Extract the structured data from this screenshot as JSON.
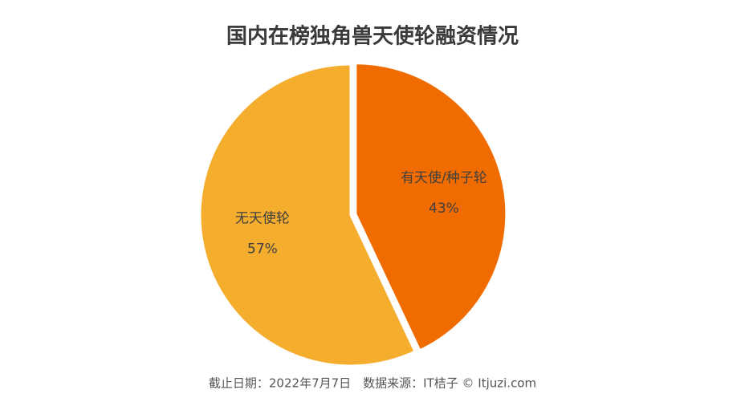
{
  "chart_data": {
    "type": "pie",
    "title": "国内在榜独角兽天使轮融资情况",
    "categories": [
      "有天使/种子轮",
      "无天使轮"
    ],
    "values": [
      43,
      57
    ],
    "value_labels": [
      "43%",
      "57%"
    ],
    "colors": [
      "#f06c00",
      "#f5ad2e"
    ],
    "source": "截止日期：2022年7月7日　数据来源：IT桔子 © Itjuzi.com"
  }
}
